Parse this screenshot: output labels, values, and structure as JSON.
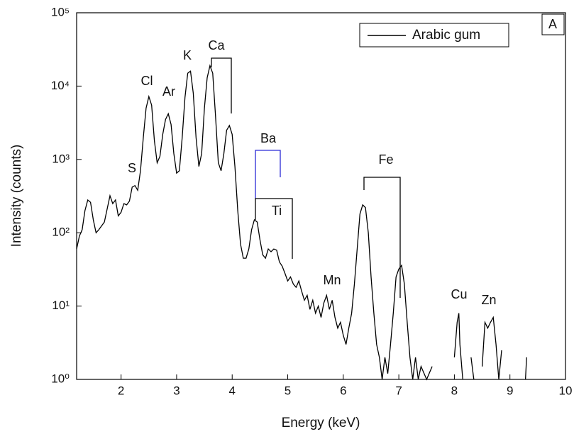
{
  "chart_data": {
    "type": "line",
    "xlabel": "Energy (keV)",
    "ylabel": "Intensity (counts)",
    "panel_label": "A",
    "log_y": true,
    "legend": "top-right",
    "xlim": [
      1.2,
      10
    ],
    "xticks": [
      2,
      3,
      4,
      5,
      6,
      7,
      8,
      9,
      10
    ],
    "ylim": [
      1,
      100000
    ],
    "yticks": [
      {
        "value": 1,
        "label": "10⁰"
      },
      {
        "value": 10,
        "label": "10¹"
      },
      {
        "value": 100,
        "label": "10²"
      },
      {
        "value": 1000,
        "label": "10³"
      },
      {
        "value": 10000,
        "label": "10⁴"
      },
      {
        "value": 100000,
        "label": "10⁵"
      }
    ],
    "annotations": [
      "S",
      "Cl",
      "Ar",
      "K",
      "Ca",
      "Ba",
      "Ti",
      "Fe",
      "Mn",
      "Cu",
      "Zn"
    ],
    "series": [
      {
        "name": "Arabic gum",
        "color": "#000000",
        "x": [
          1.2,
          1.25,
          1.3,
          1.35,
          1.4,
          1.45,
          1.5,
          1.55,
          1.6,
          1.7,
          1.8,
          1.85,
          1.9,
          1.95,
          2.0,
          2.05,
          2.1,
          2.15,
          2.2,
          2.25,
          2.3,
          2.35,
          2.4,
          2.45,
          2.5,
          2.55,
          2.6,
          2.65,
          2.7,
          2.75,
          2.8,
          2.85,
          2.9,
          2.95,
          3.0,
          3.05,
          3.1,
          3.15,
          3.2,
          3.25,
          3.3,
          3.35,
          3.4,
          3.45,
          3.5,
          3.55,
          3.6,
          3.65,
          3.7,
          3.75,
          3.8,
          3.85,
          3.9,
          3.95,
          4.0,
          4.05,
          4.1,
          4.15,
          4.2,
          4.25,
          4.3,
          4.35,
          4.4,
          4.45,
          4.5,
          4.55,
          4.6,
          4.65,
          4.7,
          4.75,
          4.8,
          4.85,
          4.9,
          4.95,
          5.0,
          5.05,
          5.1,
          5.15,
          5.2,
          5.25,
          5.3,
          5.35,
          5.4,
          5.45,
          5.5,
          5.55,
          5.6,
          5.65,
          5.7,
          5.75,
          5.8,
          5.85,
          5.9,
          5.95,
          6.0,
          6.05,
          6.1,
          6.15,
          6.2,
          6.25,
          6.3,
          6.35,
          6.4,
          6.45,
          6.5,
          6.55,
          6.6,
          6.65,
          6.7,
          6.75,
          6.8,
          6.85,
          6.9,
          6.95,
          7.0,
          7.05,
          7.1,
          7.15,
          7.2,
          7.25,
          7.3,
          7.35,
          7.4,
          7.5,
          7.6,
          7.7,
          7.8,
          7.9,
          8.0,
          8.05,
          8.08,
          8.1,
          8.15,
          8.2,
          8.3,
          8.35,
          8.4,
          8.5,
          8.55,
          8.6,
          8.65,
          8.7,
          8.75,
          8.8,
          8.85,
          8.9,
          9.28,
          9.3
        ],
        "values": [
          60,
          90,
          110,
          200,
          280,
          260,
          150,
          100,
          110,
          140,
          320,
          250,
          280,
          170,
          190,
          250,
          240,
          270,
          420,
          440,
          380,
          700,
          2000,
          5000,
          7200,
          5500,
          1800,
          900,
          1100,
          2200,
          3500,
          4200,
          3000,
          1200,
          650,
          700,
          2000,
          7000,
          15000,
          16000,
          8000,
          2000,
          800,
          1200,
          5000,
          13000,
          19000,
          15000,
          4000,
          900,
          700,
          1200,
          2500,
          2900,
          2200,
          800,
          200,
          70,
          45,
          45,
          60,
          110,
          150,
          140,
          80,
          50,
          45,
          60,
          55,
          60,
          58,
          40,
          35,
          28,
          22,
          25,
          20,
          18,
          22,
          16,
          12,
          14,
          9,
          12,
          8,
          10,
          7,
          11,
          14,
          9,
          12,
          7,
          5,
          6,
          4,
          3,
          5,
          8,
          20,
          60,
          180,
          240,
          220,
          100,
          25,
          8,
          3,
          2,
          1,
          2,
          1.2,
          3,
          8,
          25,
          32,
          36,
          20,
          6,
          2,
          1,
          2,
          1,
          1.5,
          1,
          1.5,
          null,
          1.5,
          null,
          2,
          6,
          8,
          3,
          1,
          null,
          2,
          1,
          null,
          1.5,
          6,
          5,
          6,
          7,
          3,
          1,
          2.5,
          null,
          1,
          2
        ]
      }
    ]
  }
}
